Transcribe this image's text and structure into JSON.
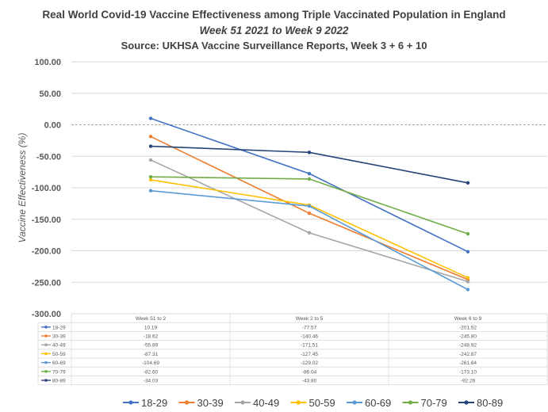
{
  "chart_data": {
    "type": "line",
    "title": "Real World Covid-19 Vaccine Effectiveness among Triple Vaccinated Population in England",
    "subtitle": "Week 51 2021 to Week 9 2022",
    "source": "Source: UKHSA Vaccine Surveillance Reports, Week 3 + 6 + 10",
    "ylabel": "Vaccine Effectiveness (%)",
    "xlabel": "",
    "ylim": [
      -300,
      100
    ],
    "yticks": [
      "100.00",
      "50.00",
      "0.00",
      "-50.00",
      "-100.00",
      "-150.00",
      "-200.00",
      "-250.00",
      "-300.00"
    ],
    "categories": [
      "Week 51 to 2",
      "Week 2 to 5",
      "Week 6 to 9"
    ],
    "grid": true,
    "legend_position": "bottom",
    "series": [
      {
        "name": "18-29",
        "color": "#4472c4",
        "values": [
          10.19,
          -77.57,
          -201.52
        ],
        "labels": [
          "10.19",
          "-77.57",
          "-201.52"
        ]
      },
      {
        "name": "30-39",
        "color": "#ed7d31",
        "values": [
          -18.62,
          -140.46,
          -245.8
        ],
        "labels": [
          "-18.62",
          "-140.46",
          "-245.80"
        ]
      },
      {
        "name": "40-49",
        "color": "#a5a5a5",
        "values": [
          -55.89,
          -171.51,
          -248.92
        ],
        "labels": [
          "-55.89",
          "-171.51",
          "-248.92"
        ]
      },
      {
        "name": "50-59",
        "color": "#ffc000",
        "values": [
          -87.31,
          -127.45,
          -242.87
        ],
        "labels": [
          "-87.31",
          "-127.45",
          "-242.87"
        ]
      },
      {
        "name": "60-69",
        "color": "#5b9bd5",
        "values": [
          -104.69,
          -129.02,
          -261.64
        ],
        "labels": [
          "-104.69",
          "-129.02",
          "-261.64"
        ]
      },
      {
        "name": "70-79",
        "color": "#70ad47",
        "values": [
          -82.6,
          -86.04,
          -173.1
        ],
        "labels": [
          "-82.60",
          "-86.04",
          "-173.10"
        ]
      },
      {
        "name": "80-89",
        "color": "#264478",
        "values": [
          -34.03,
          -43.8,
          -92.26
        ],
        "labels": [
          "-34.03",
          "-43.80",
          "-92.26"
        ]
      }
    ]
  }
}
